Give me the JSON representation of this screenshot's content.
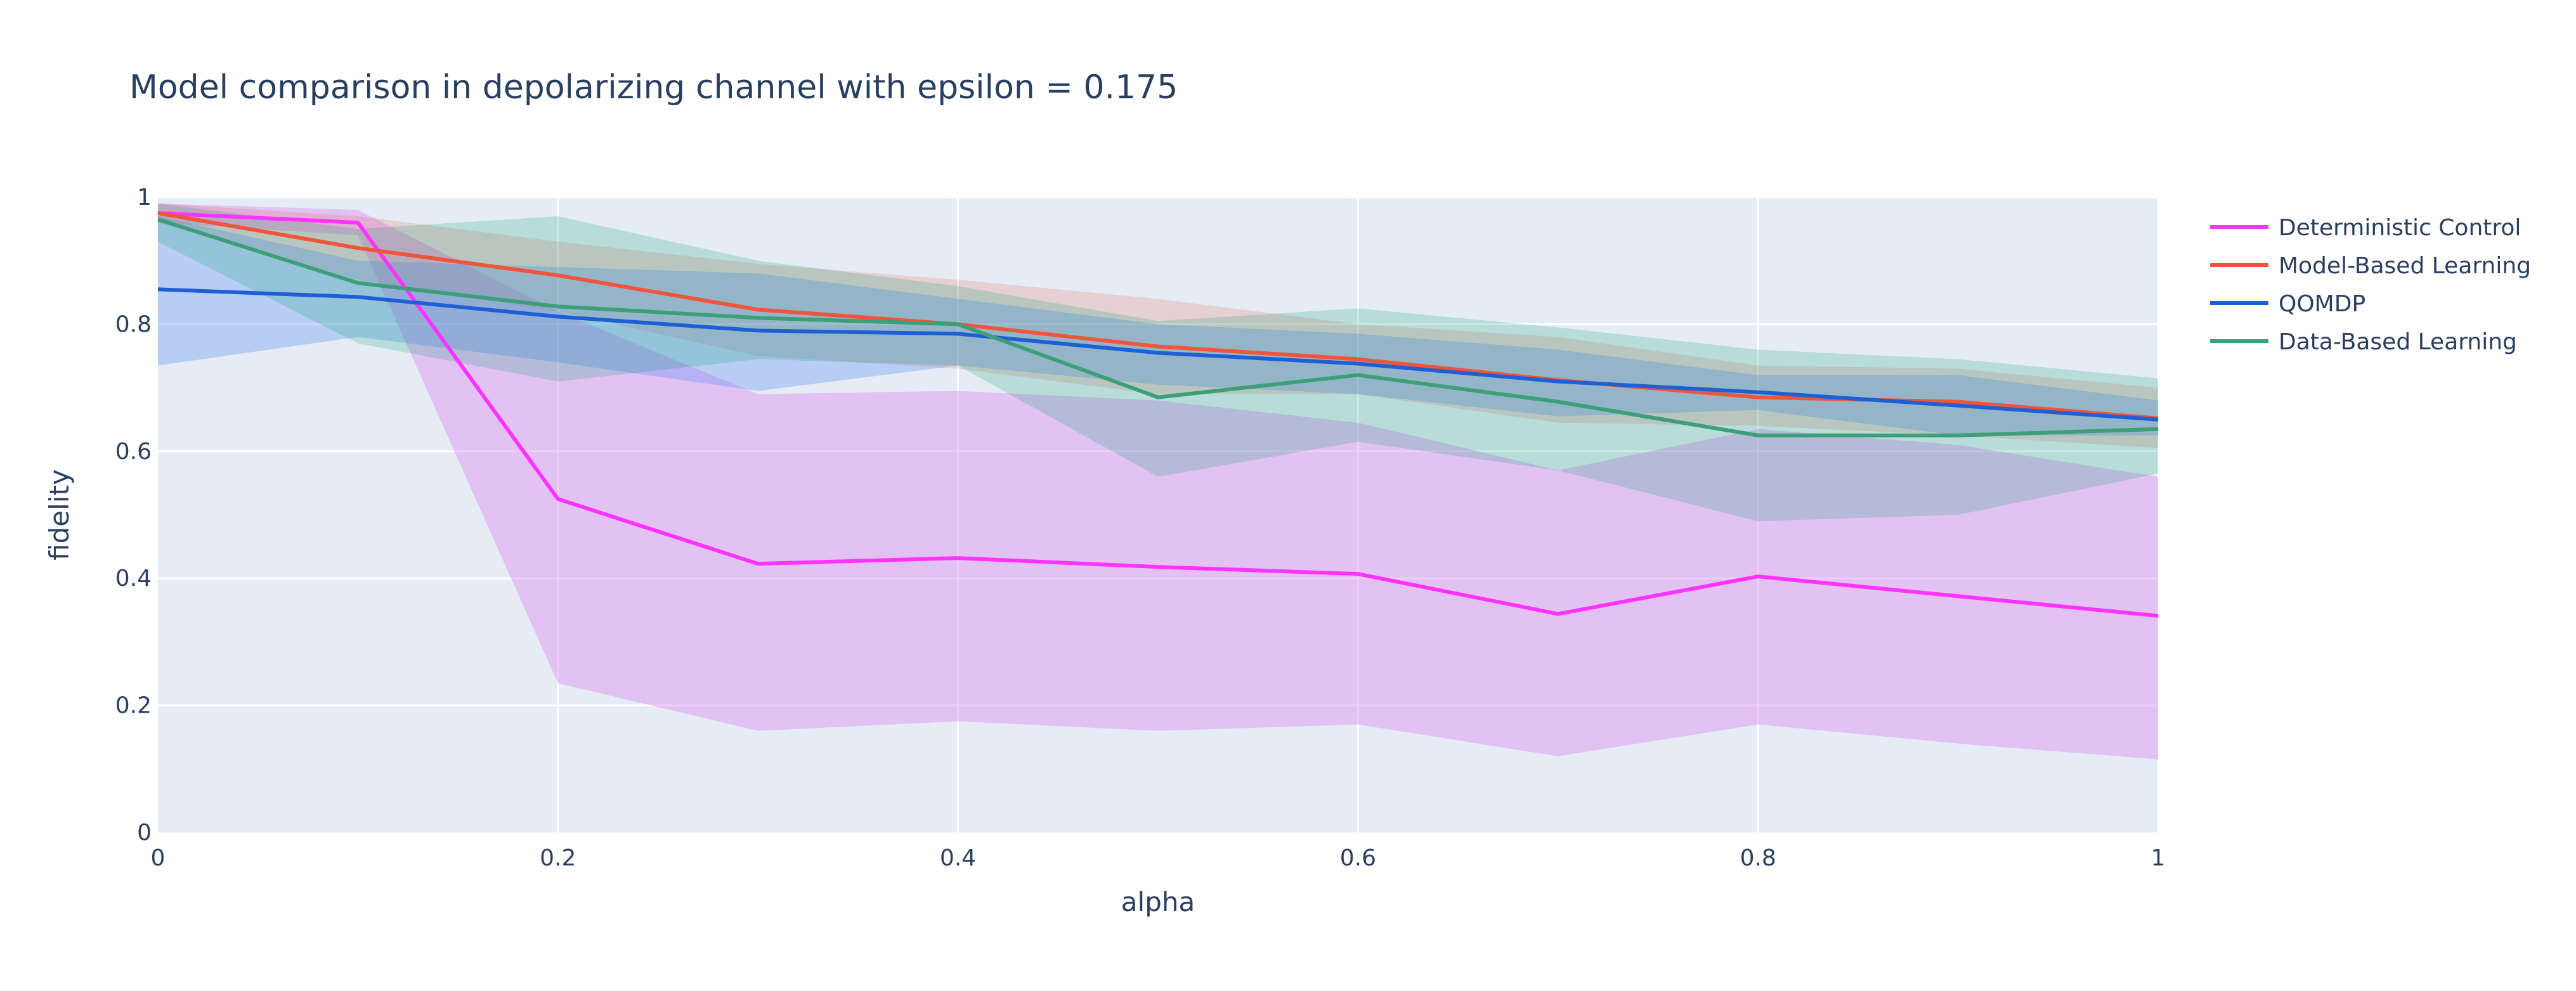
{
  "chart_data": {
    "type": "line",
    "title": "Model comparison in depolarizing channel with epsilon = 0.175",
    "xlabel": "alpha",
    "ylabel": "fidelity",
    "xlim": [
      0,
      1
    ],
    "ylim": [
      0,
      1
    ],
    "x_ticks": [
      "0",
      "0.2",
      "0.4",
      "0.6",
      "0.8",
      "1"
    ],
    "x_tick_values": [
      0,
      0.2,
      0.4,
      0.6,
      0.8,
      1
    ],
    "y_ticks": [
      "0",
      "0.2",
      "0.4",
      "0.6",
      "0.8",
      "1"
    ],
    "y_tick_values": [
      0,
      0.2,
      0.4,
      0.6,
      0.8,
      1
    ],
    "grid": true,
    "plot_background": "#e5ecf6",
    "legend_position": "top-right",
    "x": [
      0,
      0.1,
      0.2,
      0.3,
      0.4,
      0.5,
      0.6,
      0.7,
      0.8,
      0.9,
      1.0
    ],
    "series": [
      {
        "name": "Deterministic Control",
        "color": "#ff33ff",
        "fill": "rgba(221,143,240,0.45)",
        "values": [
          0.975,
          0.96,
          0.525,
          0.423,
          0.432,
          0.418,
          0.407,
          0.344,
          0.403,
          0.372,
          0.341
        ],
        "upper": [
          0.99,
          0.98,
          0.82,
          0.69,
          0.695,
          0.68,
          0.645,
          0.57,
          0.635,
          0.61,
          0.56
        ],
        "lower": [
          0.96,
          0.94,
          0.235,
          0.16,
          0.175,
          0.16,
          0.17,
          0.12,
          0.17,
          0.14,
          0.115
        ]
      },
      {
        "name": "Model-Based Learning",
        "color": "#ef553b",
        "fill": "rgba(239,85,59,0.18)",
        "values": [
          0.975,
          0.92,
          0.877,
          0.823,
          0.8,
          0.765,
          0.745,
          0.712,
          0.685,
          0.678,
          0.652
        ],
        "upper": [
          0.99,
          0.97,
          0.93,
          0.895,
          0.87,
          0.84,
          0.8,
          0.78,
          0.735,
          0.73,
          0.7
        ],
        "lower": [
          0.96,
          0.87,
          0.82,
          0.75,
          0.73,
          0.69,
          0.69,
          0.645,
          0.64,
          0.625,
          0.605
        ]
      },
      {
        "name": "QOMDP",
        "color": "#1f5fd6",
        "fill": "rgba(99,150,240,0.35)",
        "values": [
          0.855,
          0.843,
          0.812,
          0.79,
          0.785,
          0.755,
          0.738,
          0.71,
          0.693,
          0.672,
          0.65
        ],
        "upper": [
          0.97,
          0.9,
          0.89,
          0.88,
          0.84,
          0.8,
          0.785,
          0.76,
          0.72,
          0.72,
          0.68
        ],
        "lower": [
          0.735,
          0.78,
          0.74,
          0.695,
          0.735,
          0.705,
          0.69,
          0.655,
          0.665,
          0.625,
          0.625
        ]
      },
      {
        "name": "Data-Based Learning",
        "color": "#3d9e7a",
        "fill": "rgba(0,160,110,0.2)",
        "values": [
          0.965,
          0.865,
          0.828,
          0.81,
          0.8,
          0.685,
          0.72,
          0.678,
          0.625,
          0.625,
          0.635
        ],
        "upper": [
          0.99,
          0.95,
          0.97,
          0.9,
          0.86,
          0.805,
          0.825,
          0.795,
          0.76,
          0.745,
          0.715
        ],
        "lower": [
          0.93,
          0.77,
          0.71,
          0.745,
          0.735,
          0.56,
          0.615,
          0.57,
          0.49,
          0.5,
          0.565
        ]
      }
    ]
  }
}
